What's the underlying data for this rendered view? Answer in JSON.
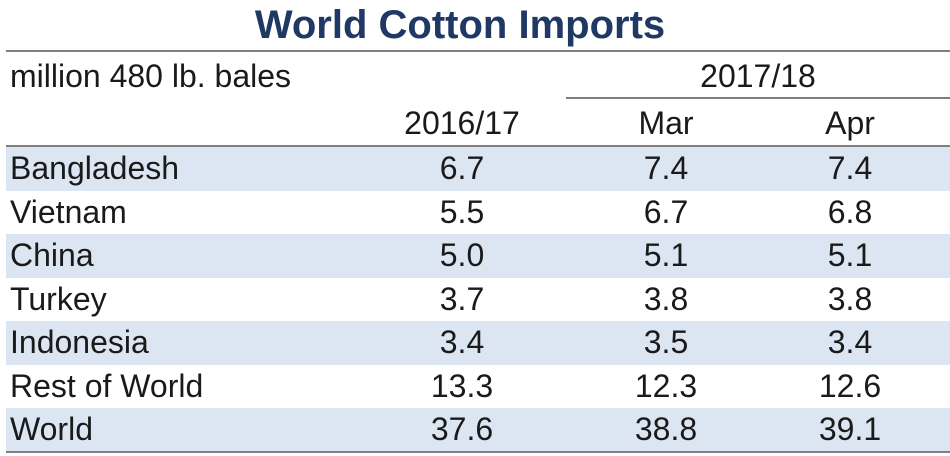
{
  "title": "World Cotton Imports",
  "unit_label": "million 480 lb. bales",
  "year_group": "2017/18",
  "columns": [
    "2016/17",
    "Mar",
    "Apr"
  ],
  "rows": [
    {
      "country": "Bangladesh",
      "v2016_17": "6.7",
      "mar": "7.4",
      "apr": "7.4"
    },
    {
      "country": "Vietnam",
      "v2016_17": "5.5",
      "mar": "6.7",
      "apr": "6.8"
    },
    {
      "country": "China",
      "v2016_17": "5.0",
      "mar": "5.1",
      "apr": "5.1"
    },
    {
      "country": "Turkey",
      "v2016_17": "3.7",
      "mar": "3.8",
      "apr": "3.8"
    },
    {
      "country": "Indonesia",
      "v2016_17": "3.4",
      "mar": "3.5",
      "apr": "3.4"
    },
    {
      "country": "Rest of World",
      "v2016_17": "13.3",
      "mar": "12.3",
      "apr": "12.6"
    },
    {
      "country": "World",
      "v2016_17": "37.6",
      "mar": "38.8",
      "apr": "39.1"
    }
  ],
  "colors": {
    "title": "#1f3864",
    "shade": "#dce6f2",
    "rule": "#7f7f7f"
  }
}
